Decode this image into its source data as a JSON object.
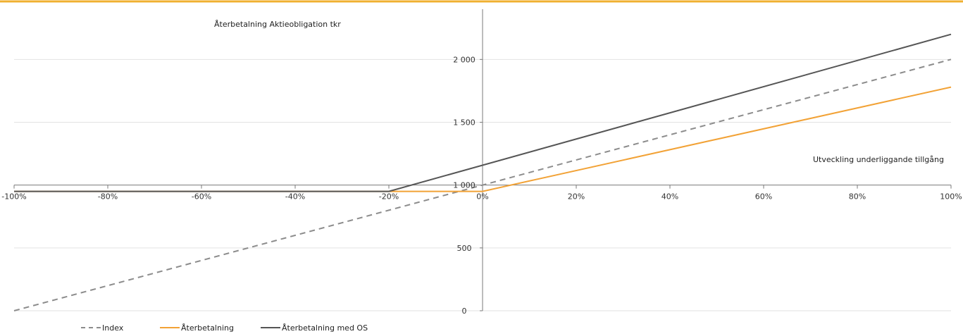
{
  "colors": {
    "top_rule": "#f0b030",
    "grid": "#e2e2e2",
    "axis": "#7a7a7a",
    "index": "#8c8c8c",
    "aterbetalning": "#f2a236",
    "aterbetalning_os": "#555555"
  },
  "chart_data": {
    "type": "line",
    "title": "Återbetalning Aktieobligation tkr",
    "xlabel": "Utveckling underliggande tillgång",
    "ylabel": "",
    "x_tick_labels": [
      "-100%",
      "-80%",
      "-60%",
      "-40%",
      "-20%",
      "0%",
      "20%",
      "40%",
      "60%",
      "80%",
      "100%"
    ],
    "y_tick_labels": [
      "0",
      "500",
      "1 000",
      "1 500",
      "2 000"
    ],
    "xlim": [
      -100,
      100
    ],
    "ylim": [
      0,
      2400
    ],
    "y_ticks": [
      0,
      500,
      1000,
      1500,
      2000
    ],
    "x_ticks": [
      -100,
      -80,
      -60,
      -40,
      -20,
      0,
      20,
      40,
      60,
      80,
      100
    ],
    "grid": true,
    "legend_position": "bottom-left",
    "series": [
      {
        "name": "Index",
        "style": "dashed",
        "x": [
          -100,
          100
        ],
        "y": [
          0,
          2000
        ]
      },
      {
        "name": "Återbetalning",
        "style": "solid",
        "x": [
          -100,
          0,
          100
        ],
        "y": [
          950,
          950,
          1780
        ]
      },
      {
        "name": "Återbetalning med OS",
        "style": "solid",
        "x": [
          -100,
          -20,
          100
        ],
        "y": [
          950,
          950,
          2200
        ]
      }
    ]
  }
}
